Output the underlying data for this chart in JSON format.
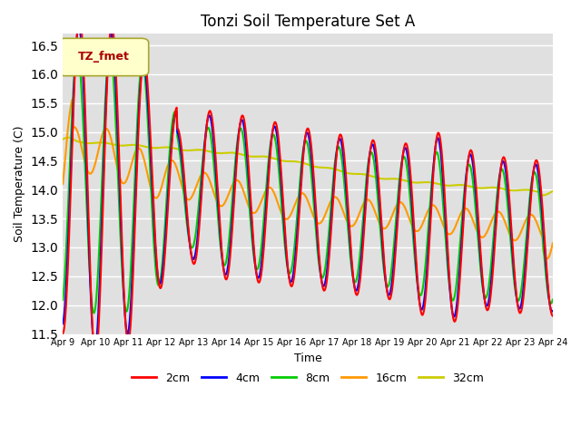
{
  "title": "Tonzi Soil Temperature Set A",
  "xlabel": "Time",
  "ylabel": "Soil Temperature (C)",
  "ylim": [
    11.5,
    16.7
  ],
  "yticks": [
    11.5,
    12.0,
    12.5,
    13.0,
    13.5,
    14.0,
    14.5,
    15.0,
    15.5,
    16.0,
    16.5
  ],
  "legend_label": "TZ_fmet",
  "colors": {
    "2cm": "#ff0000",
    "4cm": "#0000ff",
    "8cm": "#00cc00",
    "16cm": "#ff9900",
    "32cm": "#cccc00"
  },
  "line_width": 1.5,
  "x_start": 9,
  "x_end": 24,
  "xtick_days": [
    9,
    10,
    11,
    12,
    13,
    14,
    15,
    16,
    17,
    18,
    19,
    20,
    21,
    22,
    23,
    24
  ]
}
